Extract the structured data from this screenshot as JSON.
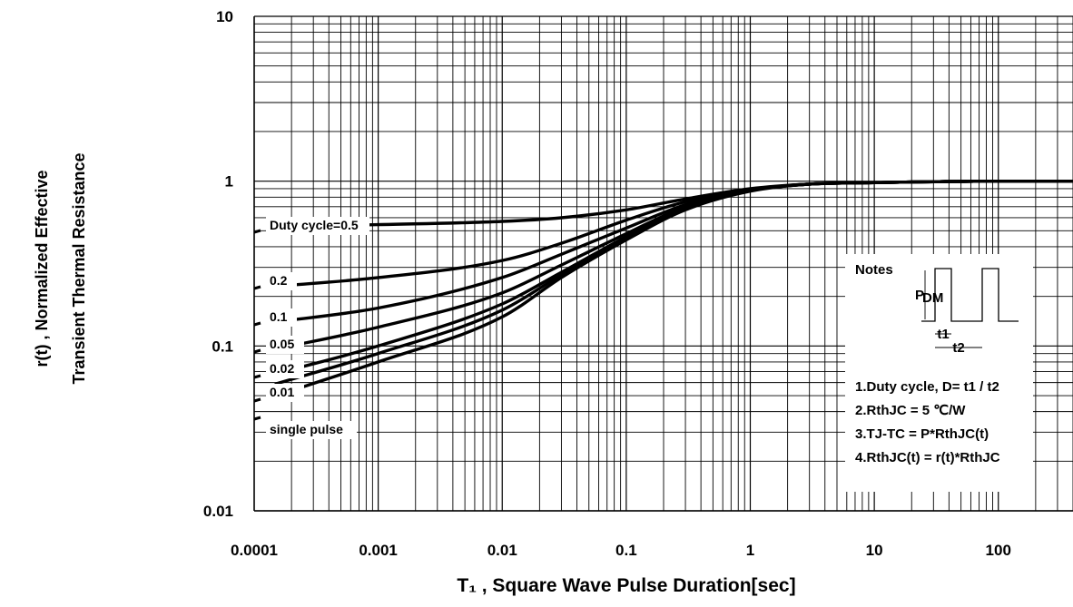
{
  "chart_data": {
    "type": "line",
    "title": "",
    "xlabel": "T₁ , Square Wave Pulse Duration[sec]",
    "ylabel_line1": "r(t) , Normalized Effective",
    "ylabel_line2": "Transient Thermal Resistance",
    "x_scale": "log",
    "y_scale": "log",
    "xlim": [
      0.0001,
      400
    ],
    "ylim": [
      0.01,
      10
    ],
    "x_tick_values": [
      0.0001,
      0.001,
      0.01,
      0.1,
      1,
      10,
      100
    ],
    "x_tick_labels": [
      "0.0001",
      "0.001",
      "0.01",
      "0.1",
      "1",
      "10",
      "100"
    ],
    "y_tick_values": [
      10,
      1,
      0.1,
      0.01
    ],
    "y_tick_labels": [
      "10",
      "1",
      "0.1",
      "0.01"
    ],
    "grid": true,
    "series": [
      {
        "name": "Duty cycle=0.5",
        "x": [
          0.00015,
          0.001,
          0.01,
          0.03,
          0.1,
          0.3,
          1,
          3,
          10,
          100,
          400
        ],
        "y": [
          0.53,
          0.545,
          0.57,
          0.6,
          0.67,
          0.78,
          0.9,
          0.96,
          0.98,
          1.0,
          1.0
        ]
      },
      {
        "name": "0.2",
        "x": [
          0.00015,
          0.001,
          0.01,
          0.03,
          0.1,
          0.3,
          1,
          3,
          10,
          100,
          400
        ],
        "y": [
          0.23,
          0.26,
          0.33,
          0.42,
          0.58,
          0.75,
          0.89,
          0.96,
          0.98,
          1.0,
          1.0
        ]
      },
      {
        "name": "0.1",
        "x": [
          0.00015,
          0.001,
          0.01,
          0.03,
          0.1,
          0.3,
          1,
          3,
          10,
          100,
          400
        ],
        "y": [
          0.14,
          0.17,
          0.26,
          0.36,
          0.52,
          0.72,
          0.88,
          0.96,
          0.98,
          1.0,
          1.0
        ]
      },
      {
        "name": "0.05",
        "x": [
          0.00015,
          0.001,
          0.01,
          0.03,
          0.1,
          0.3,
          1,
          3,
          10,
          100,
          400
        ],
        "y": [
          0.096,
          0.13,
          0.21,
          0.31,
          0.48,
          0.7,
          0.88,
          0.96,
          0.98,
          1.0,
          1.0
        ]
      },
      {
        "name": "0.02",
        "x": [
          0.00015,
          0.001,
          0.01,
          0.03,
          0.1,
          0.3,
          1,
          3,
          10,
          100,
          400
        ],
        "y": [
          0.068,
          0.1,
          0.18,
          0.28,
          0.46,
          0.69,
          0.88,
          0.96,
          0.98,
          1.0,
          1.0
        ]
      },
      {
        "name": "0.01",
        "x": [
          0.00015,
          0.001,
          0.01,
          0.03,
          0.1,
          0.3,
          1,
          3,
          10,
          100,
          400
        ],
        "y": [
          0.059,
          0.09,
          0.165,
          0.27,
          0.45,
          0.68,
          0.88,
          0.96,
          0.98,
          1.0,
          1.0
        ]
      },
      {
        "name": "single pulse",
        "x": [
          0.00015,
          0.001,
          0.01,
          0.03,
          0.1,
          0.3,
          1,
          3,
          10,
          100,
          400
        ],
        "y": [
          0.05,
          0.08,
          0.15,
          0.26,
          0.44,
          0.67,
          0.87,
          0.96,
          0.98,
          1.0,
          1.0
        ]
      }
    ],
    "notes": {
      "title": "Notes",
      "pdm_label": "P",
      "pdm_sub": "DM",
      "t1_label": "t1",
      "t2_label": "t2",
      "lines": [
        "1.Duty cycle, D= t1 / t2",
        "2.RthJC =  5 ℃/W",
        "3.TJ-TC = P*RthJC(t)",
        "4.RthJC(t) = r(t)*RthJC"
      ]
    }
  }
}
